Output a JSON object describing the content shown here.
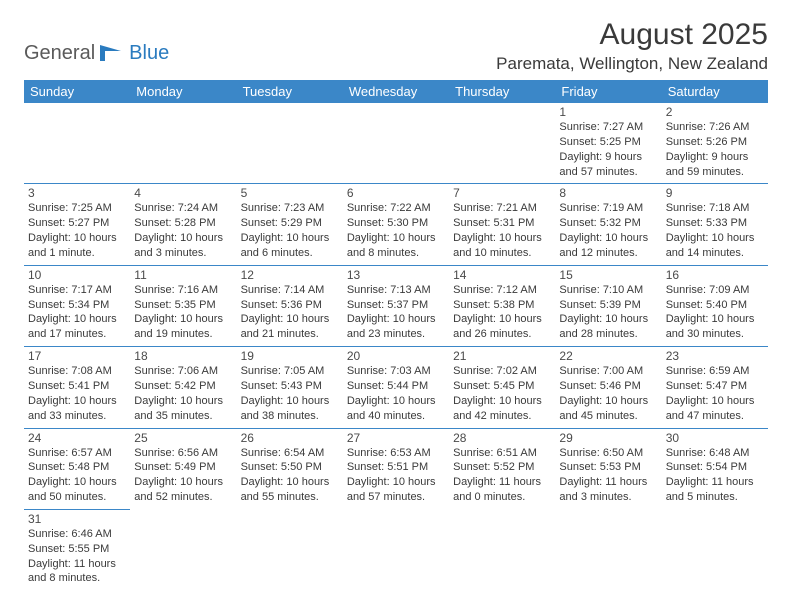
{
  "logo": {
    "text_gray": "General",
    "text_blue": "Blue",
    "icon_color": "#2a7bbf"
  },
  "header": {
    "month_title": "August 2025",
    "location": "Paremata, Wellington, New Zealand"
  },
  "style": {
    "header_bg": "#3b87c8",
    "header_fg": "#ffffff",
    "cell_border": "#3b87c8",
    "body_text": "#3a3a3a",
    "daynum_text": "#4a4a4a",
    "page_bg": "#ffffff",
    "font_family": "Arial, Helvetica, sans-serif",
    "month_title_size_pt": 22,
    "location_size_pt": 13,
    "dayheader_size_pt": 10,
    "daynum_size_pt": 9,
    "detail_size_pt": 8
  },
  "day_headers": [
    "Sunday",
    "Monday",
    "Tuesday",
    "Wednesday",
    "Thursday",
    "Friday",
    "Saturday"
  ],
  "weeks": [
    [
      null,
      null,
      null,
      null,
      null,
      {
        "n": "1",
        "sr": "Sunrise: 7:27 AM",
        "ss": "Sunset: 5:25 PM",
        "dl": "Daylight: 9 hours and 57 minutes."
      },
      {
        "n": "2",
        "sr": "Sunrise: 7:26 AM",
        "ss": "Sunset: 5:26 PM",
        "dl": "Daylight: 9 hours and 59 minutes."
      }
    ],
    [
      {
        "n": "3",
        "sr": "Sunrise: 7:25 AM",
        "ss": "Sunset: 5:27 PM",
        "dl": "Daylight: 10 hours and 1 minute."
      },
      {
        "n": "4",
        "sr": "Sunrise: 7:24 AM",
        "ss": "Sunset: 5:28 PM",
        "dl": "Daylight: 10 hours and 3 minutes."
      },
      {
        "n": "5",
        "sr": "Sunrise: 7:23 AM",
        "ss": "Sunset: 5:29 PM",
        "dl": "Daylight: 10 hours and 6 minutes."
      },
      {
        "n": "6",
        "sr": "Sunrise: 7:22 AM",
        "ss": "Sunset: 5:30 PM",
        "dl": "Daylight: 10 hours and 8 minutes."
      },
      {
        "n": "7",
        "sr": "Sunrise: 7:21 AM",
        "ss": "Sunset: 5:31 PM",
        "dl": "Daylight: 10 hours and 10 minutes."
      },
      {
        "n": "8",
        "sr": "Sunrise: 7:19 AM",
        "ss": "Sunset: 5:32 PM",
        "dl": "Daylight: 10 hours and 12 minutes."
      },
      {
        "n": "9",
        "sr": "Sunrise: 7:18 AM",
        "ss": "Sunset: 5:33 PM",
        "dl": "Daylight: 10 hours and 14 minutes."
      }
    ],
    [
      {
        "n": "10",
        "sr": "Sunrise: 7:17 AM",
        "ss": "Sunset: 5:34 PM",
        "dl": "Daylight: 10 hours and 17 minutes."
      },
      {
        "n": "11",
        "sr": "Sunrise: 7:16 AM",
        "ss": "Sunset: 5:35 PM",
        "dl": "Daylight: 10 hours and 19 minutes."
      },
      {
        "n": "12",
        "sr": "Sunrise: 7:14 AM",
        "ss": "Sunset: 5:36 PM",
        "dl": "Daylight: 10 hours and 21 minutes."
      },
      {
        "n": "13",
        "sr": "Sunrise: 7:13 AM",
        "ss": "Sunset: 5:37 PM",
        "dl": "Daylight: 10 hours and 23 minutes."
      },
      {
        "n": "14",
        "sr": "Sunrise: 7:12 AM",
        "ss": "Sunset: 5:38 PM",
        "dl": "Daylight: 10 hours and 26 minutes."
      },
      {
        "n": "15",
        "sr": "Sunrise: 7:10 AM",
        "ss": "Sunset: 5:39 PM",
        "dl": "Daylight: 10 hours and 28 minutes."
      },
      {
        "n": "16",
        "sr": "Sunrise: 7:09 AM",
        "ss": "Sunset: 5:40 PM",
        "dl": "Daylight: 10 hours and 30 minutes."
      }
    ],
    [
      {
        "n": "17",
        "sr": "Sunrise: 7:08 AM",
        "ss": "Sunset: 5:41 PM",
        "dl": "Daylight: 10 hours and 33 minutes."
      },
      {
        "n": "18",
        "sr": "Sunrise: 7:06 AM",
        "ss": "Sunset: 5:42 PM",
        "dl": "Daylight: 10 hours and 35 minutes."
      },
      {
        "n": "19",
        "sr": "Sunrise: 7:05 AM",
        "ss": "Sunset: 5:43 PM",
        "dl": "Daylight: 10 hours and 38 minutes."
      },
      {
        "n": "20",
        "sr": "Sunrise: 7:03 AM",
        "ss": "Sunset: 5:44 PM",
        "dl": "Daylight: 10 hours and 40 minutes."
      },
      {
        "n": "21",
        "sr": "Sunrise: 7:02 AM",
        "ss": "Sunset: 5:45 PM",
        "dl": "Daylight: 10 hours and 42 minutes."
      },
      {
        "n": "22",
        "sr": "Sunrise: 7:00 AM",
        "ss": "Sunset: 5:46 PM",
        "dl": "Daylight: 10 hours and 45 minutes."
      },
      {
        "n": "23",
        "sr": "Sunrise: 6:59 AM",
        "ss": "Sunset: 5:47 PM",
        "dl": "Daylight: 10 hours and 47 minutes."
      }
    ],
    [
      {
        "n": "24",
        "sr": "Sunrise: 6:57 AM",
        "ss": "Sunset: 5:48 PM",
        "dl": "Daylight: 10 hours and 50 minutes."
      },
      {
        "n": "25",
        "sr": "Sunrise: 6:56 AM",
        "ss": "Sunset: 5:49 PM",
        "dl": "Daylight: 10 hours and 52 minutes."
      },
      {
        "n": "26",
        "sr": "Sunrise: 6:54 AM",
        "ss": "Sunset: 5:50 PM",
        "dl": "Daylight: 10 hours and 55 minutes."
      },
      {
        "n": "27",
        "sr": "Sunrise: 6:53 AM",
        "ss": "Sunset: 5:51 PM",
        "dl": "Daylight: 10 hours and 57 minutes."
      },
      {
        "n": "28",
        "sr": "Sunrise: 6:51 AM",
        "ss": "Sunset: 5:52 PM",
        "dl": "Daylight: 11 hours and 0 minutes."
      },
      {
        "n": "29",
        "sr": "Sunrise: 6:50 AM",
        "ss": "Sunset: 5:53 PM",
        "dl": "Daylight: 11 hours and 3 minutes."
      },
      {
        "n": "30",
        "sr": "Sunrise: 6:48 AM",
        "ss": "Sunset: 5:54 PM",
        "dl": "Daylight: 11 hours and 5 minutes."
      }
    ],
    [
      {
        "n": "31",
        "sr": "Sunrise: 6:46 AM",
        "ss": "Sunset: 5:55 PM",
        "dl": "Daylight: 11 hours and 8 minutes."
      },
      null,
      null,
      null,
      null,
      null,
      null
    ]
  ]
}
